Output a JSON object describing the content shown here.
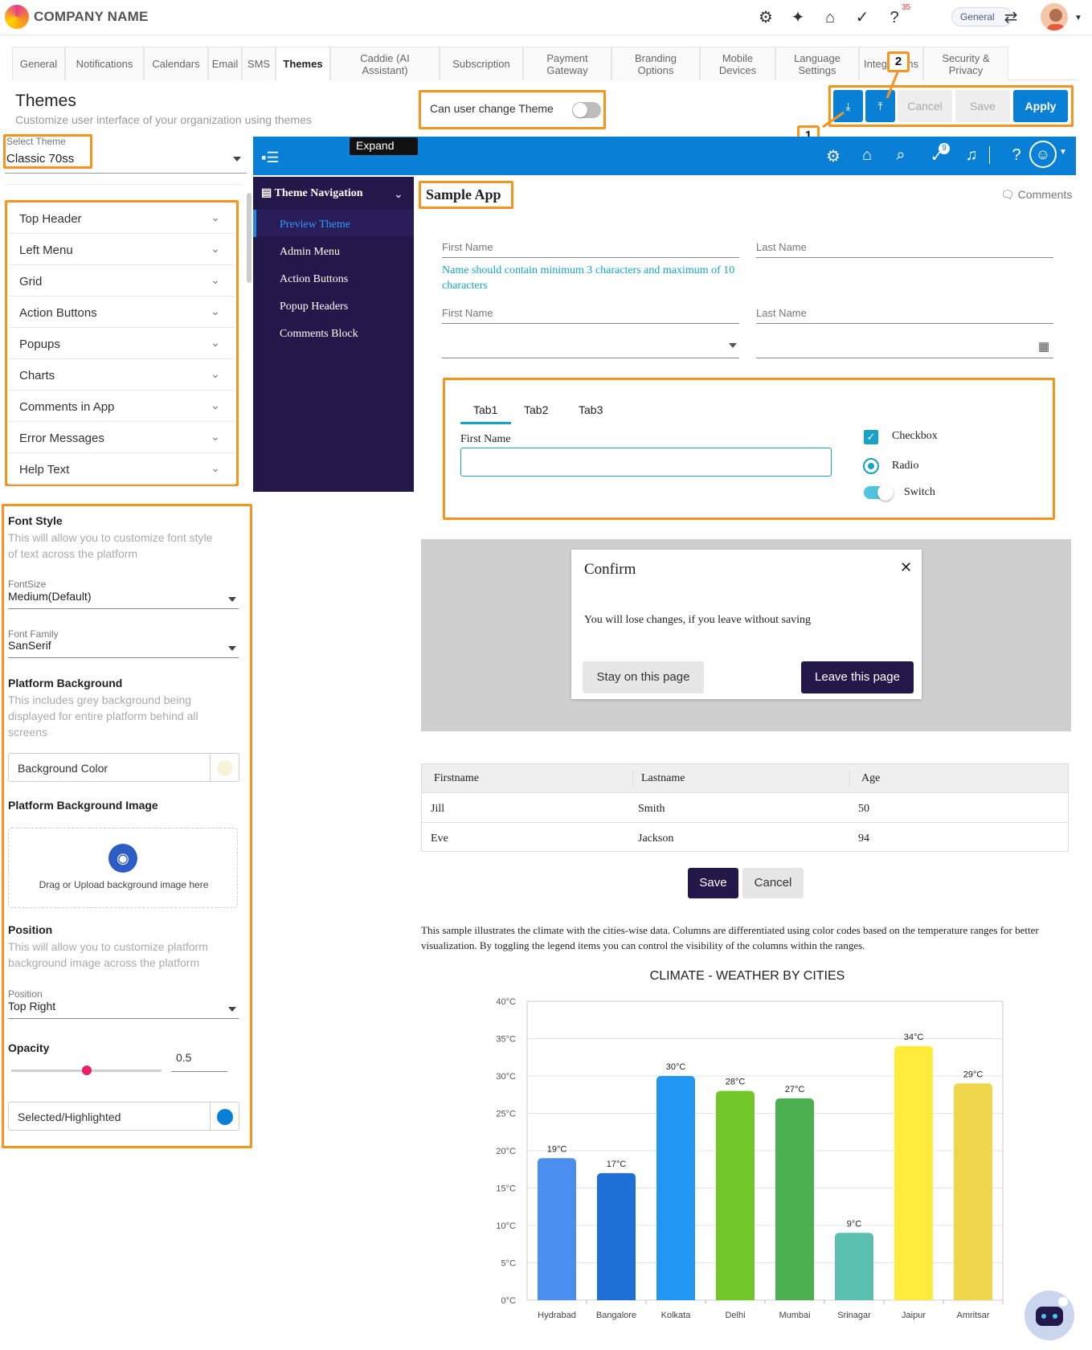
{
  "app": {
    "company": "COMPANY NAME",
    "notification_count": "35",
    "general_label": "General"
  },
  "tabs": [
    {
      "label": "General"
    },
    {
      "label": "Notifications"
    },
    {
      "label": "Calendars"
    },
    {
      "label": "Email"
    },
    {
      "label": "SMS"
    },
    {
      "label": "Themes"
    },
    {
      "label": "Caddie (AI\nAssistant)"
    },
    {
      "label": "Subscription"
    },
    {
      "label": "Payment\nGateway"
    },
    {
      "label": "Branding\nOptions"
    },
    {
      "label": "Mobile\nDevices"
    },
    {
      "label": "Language\nSettings"
    },
    {
      "label": "Integrations"
    },
    {
      "label": "Security &\nPrivacy"
    }
  ],
  "page": {
    "title": "Themes",
    "subtitle": "Customize user interface of your organization using themes",
    "change_theme_label": "Can user change Theme",
    "change_theme_on": false
  },
  "toolbar": {
    "cancel": "Cancel",
    "save": "Save",
    "apply": "Apply",
    "tag1": "1",
    "tag2": "2"
  },
  "left": {
    "select_theme_label": "Select Theme",
    "select_theme_value": "Classic 70ss",
    "accordion": [
      "Top Header",
      "Left Menu",
      "Grid",
      "Action Buttons",
      "Popups",
      "Charts",
      "Comments in App",
      "Error Messages",
      "Help Text"
    ],
    "font_style_title": "Font Style",
    "font_style_desc": "This will allow you to customize font style of text across the platform",
    "fontsize_label": "FontSize",
    "fontsize_value": "Medium(Default)",
    "fontfamily_label": "Font Family",
    "fontfamily_value": "SanSerif",
    "platform_bg_title": "Platform Background",
    "platform_bg_desc": "This includes grey background being displayed for entire platform behind all screens",
    "bg_color_label": "Background Color",
    "bg_color": "#f7f3d9",
    "bg_image_title": "Platform Background Image",
    "upload_text": "Drag or Upload background image here",
    "position_title": "Position",
    "position_desc": "This will allow you to customize platform background image across the platform",
    "position_label": "Position",
    "position_value": "Top Right",
    "opacity_title": "Opacity",
    "opacity_value": "0.5",
    "selected_label": "Selected/Highlighted",
    "selected_color": "#0a7fd6"
  },
  "preview": {
    "expand": "Expand",
    "nav_title": "Theme Navigation",
    "nav_items": [
      "Preview Theme",
      "Admin Menu",
      "Action Buttons",
      "Popup Headers",
      "Comments Block"
    ],
    "sample_app": "Sample App",
    "comments": "Comments",
    "notif_count": "9",
    "first_name": "First Name",
    "last_name": "Last Name",
    "error": "Name should contain minimum 3 characters and maximum of 10 characters",
    "tabs": [
      "Tab1",
      "Tab2",
      "Tab3"
    ],
    "tab_field": "First Name",
    "checkbox": "Checkbox",
    "radio": "Radio",
    "switch": "Switch",
    "dialog_title": "Confirm",
    "dialog_body": "You will lose changes, if you leave without saving",
    "stay": "Stay on this page",
    "leave": "Leave this page",
    "table_headers": [
      "Firstname",
      "Lastname",
      "Age"
    ],
    "table_rows": [
      [
        "Jill",
        "Smith",
        "50"
      ],
      [
        "Eve",
        "Jackson",
        "94"
      ]
    ],
    "save": "Save",
    "cancel": "Cancel",
    "chart_desc": "This sample illustrates the climate with the cities-wise data. Columns are differentiated using color codes based on the temperature ranges for better visualization. By toggling the legend items you can control the visibility of the columns within the ranges."
  },
  "chart_data": {
    "type": "bar",
    "title": "CLIMATE - WEATHER BY CITIES",
    "categories": [
      "Hydrabad",
      "Bangalore",
      "Kolkata",
      "Delhi",
      "Mumbai",
      "Srinagar",
      "Jaipur",
      "Amritsar"
    ],
    "values": [
      19,
      17,
      30,
      28,
      27,
      9,
      34,
      29
    ],
    "colors": [
      "#4a8ef0",
      "#1e6fd6",
      "#2196f3",
      "#71c72a",
      "#4caf50",
      "#5bbfb0",
      "#ffeb3b",
      "#f0d64a"
    ],
    "ylim": [
      0,
      40
    ],
    "yticks": [
      "0°C",
      "5°C",
      "10°C",
      "15°C",
      "20°C",
      "25°C",
      "30°C",
      "35°C",
      "40°C"
    ],
    "value_labels": [
      "19°C",
      "17°C",
      "30°C",
      "28°C",
      "27°C",
      "9°C",
      "34°C",
      "29°C"
    ],
    "grid": true
  }
}
